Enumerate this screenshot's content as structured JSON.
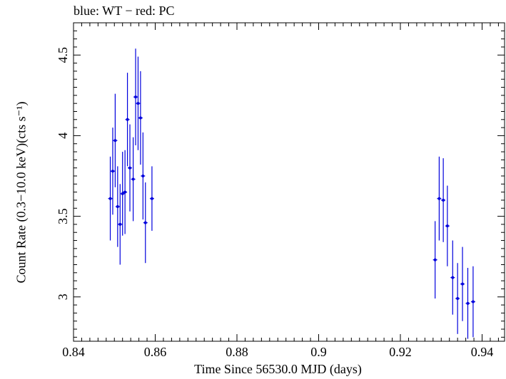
{
  "chart_data": {
    "type": "scatter",
    "title": "blue: WT − red: PC",
    "xlabel": "Time Since 56530.0 MJD (days)",
    "ylabel": "Count Rate (0.3−10.0 keV)(cts s⁻¹)",
    "xlim": [
      0.84,
      0.9455
    ],
    "ylim": [
      2.725,
      4.7
    ],
    "xticks": [
      0.84,
      0.86,
      0.88,
      0.9,
      0.92,
      0.94
    ],
    "xtick_labels": [
      "0.84",
      "0.86",
      "0.88",
      "0.9",
      "0.92",
      "0.94"
    ],
    "yticks": [
      3,
      3.5,
      4,
      4.5
    ],
    "ytick_labels": [
      "3",
      "3.5",
      "4",
      "4.5"
    ],
    "grid": false,
    "series": [
      {
        "color": "#0000dd",
        "points": [
          {
            "x": 0.849,
            "y": 3.61,
            "err": 0.26
          },
          {
            "x": 0.8496,
            "y": 3.78,
            "err": 0.27
          },
          {
            "x": 0.8502,
            "y": 3.97,
            "err": 0.29
          },
          {
            "x": 0.8508,
            "y": 3.56,
            "err": 0.25
          },
          {
            "x": 0.8514,
            "y": 3.45,
            "err": 0.25
          },
          {
            "x": 0.852,
            "y": 3.64,
            "err": 0.26
          },
          {
            "x": 0.8526,
            "y": 3.65,
            "err": 0.26
          },
          {
            "x": 0.8538,
            "y": 3.8,
            "err": 0.27
          },
          {
            "x": 0.8532,
            "y": 4.1,
            "err": 0.29
          },
          {
            "x": 0.8546,
            "y": 3.73,
            "err": 0.26
          },
          {
            "x": 0.8552,
            "y": 4.24,
            "err": 0.3
          },
          {
            "x": 0.8558,
            "y": 4.2,
            "err": 0.29
          },
          {
            "x": 0.8564,
            "y": 4.11,
            "err": 0.29
          },
          {
            "x": 0.857,
            "y": 3.75,
            "err": 0.27
          },
          {
            "x": 0.8576,
            "y": 3.46,
            "err": 0.25
          },
          {
            "x": 0.8592,
            "y": 3.61,
            "err": 0.2
          },
          {
            "x": 0.9285,
            "y": 3.23,
            "err": 0.24
          },
          {
            "x": 0.9295,
            "y": 3.61,
            "err": 0.26
          },
          {
            "x": 0.9305,
            "y": 3.6,
            "err": 0.26
          },
          {
            "x": 0.9315,
            "y": 3.44,
            "err": 0.25
          },
          {
            "x": 0.9328,
            "y": 3.12,
            "err": 0.23
          },
          {
            "x": 0.934,
            "y": 2.99,
            "err": 0.22
          },
          {
            "x": 0.9352,
            "y": 3.08,
            "err": 0.23
          },
          {
            "x": 0.9365,
            "y": 2.96,
            "err": 0.22
          },
          {
            "x": 0.9378,
            "y": 2.97,
            "err": 0.22
          }
        ]
      }
    ]
  }
}
